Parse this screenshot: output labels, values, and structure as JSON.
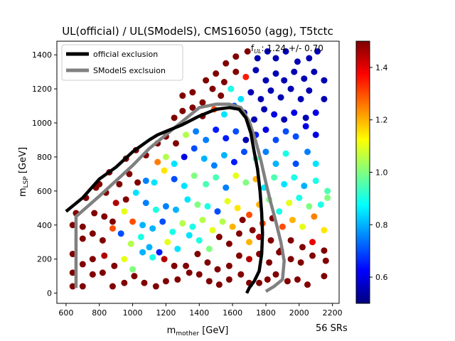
{
  "chart_data": {
    "type": "scatter",
    "title": "UL(official) / UL(SModelS), CMS16050 (agg), T5tctc",
    "xlabel": "m",
    "xlabel_sub": "mother",
    "xlabel_unit": " [GeV]",
    "ylabel": "m",
    "ylabel_sub": "LSP",
    "ylabel_unit": " [GeV]",
    "xlim": [
      545,
      2240
    ],
    "ylim": [
      -60,
      1480
    ],
    "xticks": [
      600,
      800,
      1000,
      1200,
      1400,
      1600,
      1800,
      2000,
      2200
    ],
    "yticks": [
      0,
      200,
      400,
      600,
      800,
      1000,
      1200,
      1400
    ],
    "annotation_f": "f",
    "annotation_sub": "UL",
    "annotation_value": ": 1.24 +/- 0.70",
    "footer": "56 SRs",
    "colorbar": {
      "min": 0.5,
      "max": 1.5,
      "ticks": [
        "0.6",
        "0.8",
        "1.0",
        "1.2",
        "1.4"
      ],
      "tick_values": [
        0.6,
        0.8,
        1.0,
        1.2,
        1.4
      ],
      "colormap": "jet"
    },
    "legend": {
      "placement": "top-left",
      "items": [
        {
          "label": "official exclusion",
          "color": "#000000"
        },
        {
          "label": "SModelS exclsuion",
          "color": "#808080"
        }
      ]
    },
    "official_exclusion": [
      [
        600,
        480
      ],
      [
        700,
        560
      ],
      [
        800,
        670
      ],
      [
        900,
        740
      ],
      [
        1000,
        830
      ],
      [
        1100,
        900
      ],
      [
        1150,
        930
      ],
      [
        1200,
        950
      ],
      [
        1300,
        990
      ],
      [
        1400,
        1040
      ],
      [
        1500,
        1080
      ],
      [
        1580,
        1090
      ],
      [
        1640,
        1080
      ],
      [
        1680,
        1030
      ],
      [
        1710,
        940
      ],
      [
        1730,
        830
      ],
      [
        1750,
        730
      ],
      [
        1765,
        600
      ],
      [
        1775,
        470
      ],
      [
        1780,
        350
      ],
      [
        1775,
        230
      ],
      [
        1760,
        130
      ],
      [
        1730,
        70
      ],
      [
        1700,
        30
      ],
      [
        1685,
        0
      ]
    ],
    "smodels_exclusion": [
      [
        660,
        30
      ],
      [
        660,
        450
      ],
      [
        800,
        570
      ],
      [
        900,
        660
      ],
      [
        1000,
        750
      ],
      [
        1100,
        850
      ],
      [
        1200,
        930
      ],
      [
        1300,
        1010
      ],
      [
        1400,
        1090
      ],
      [
        1500,
        1110
      ],
      [
        1580,
        1110
      ],
      [
        1650,
        1090
      ],
      [
        1700,
        1010
      ],
      [
        1740,
        890
      ],
      [
        1770,
        780
      ],
      [
        1800,
        650
      ],
      [
        1830,
        530
      ],
      [
        1860,
        420
      ],
      [
        1890,
        300
      ],
      [
        1910,
        190
      ],
      [
        1900,
        80
      ],
      [
        1850,
        40
      ],
      [
        1800,
        10
      ]
    ],
    "points": [
      [
        640,
        40,
        1.5
      ],
      [
        700,
        40,
        1.5
      ],
      [
        760,
        110,
        1.5
      ],
      [
        820,
        120,
        1.5
      ],
      [
        880,
        40,
        1.5
      ],
      [
        950,
        60,
        1.5
      ],
      [
        1010,
        100,
        1.5
      ],
      [
        1070,
        60,
        1.5
      ],
      [
        1140,
        40,
        1.5
      ],
      [
        1200,
        70,
        1.5
      ],
      [
        1270,
        80,
        1.5
      ],
      [
        1340,
        120,
        1.5
      ],
      [
        1400,
        110,
        1.5
      ],
      [
        1460,
        70,
        1.5
      ],
      [
        1520,
        50,
        1.5
      ],
      [
        1580,
        80,
        1.5
      ],
      [
        1650,
        110,
        1.5
      ],
      [
        1700,
        60,
        1.5
      ],
      [
        1760,
        60,
        1.5
      ],
      [
        1810,
        80,
        1.5
      ],
      [
        1860,
        110,
        1.5
      ],
      [
        1930,
        70,
        1.5
      ],
      [
        1990,
        80,
        1.5
      ],
      [
        2050,
        50,
        1.5
      ],
      [
        2150,
        100,
        1.5
      ],
      [
        640,
        120,
        1.5
      ],
      [
        700,
        170,
        1.5
      ],
      [
        760,
        200,
        1.5
      ],
      [
        830,
        220,
        1.45
      ],
      [
        890,
        160,
        1.5
      ],
      [
        950,
        200,
        1.1
      ],
      [
        1000,
        140,
        1.0
      ],
      [
        1060,
        240,
        0.8
      ],
      [
        1120,
        210,
        0.9
      ],
      [
        1190,
        200,
        1.45
      ],
      [
        1250,
        160,
        1.5
      ],
      [
        1320,
        160,
        1.5
      ],
      [
        1390,
        230,
        1.5
      ],
      [
        1450,
        180,
        1.5
      ],
      [
        1510,
        140,
        1.5
      ],
      [
        1580,
        160,
        1.5
      ],
      [
        1640,
        220,
        1.5
      ],
      [
        1700,
        200,
        1.45
      ],
      [
        1760,
        230,
        1.5
      ],
      [
        1820,
        180,
        1.5
      ],
      [
        1880,
        240,
        1.5
      ],
      [
        1950,
        200,
        1.5
      ],
      [
        2010,
        180,
        1.5
      ],
      [
        2080,
        220,
        1.5
      ],
      [
        2160,
        190,
        1.5
      ],
      [
        640,
        230,
        1.5
      ],
      [
        700,
        320,
        1.5
      ],
      [
        760,
        350,
        1.5
      ],
      [
        820,
        310,
        1.5
      ],
      [
        880,
        380,
        1.3
      ],
      [
        930,
        350,
        0.7
      ],
      [
        990,
        290,
        1.05
      ],
      [
        1050,
        330,
        0.9
      ],
      [
        1100,
        270,
        0.8
      ],
      [
        1160,
        240,
        0.65
      ],
      [
        1210,
        300,
        1.1
      ],
      [
        1270,
        260,
        0.85
      ],
      [
        1340,
        340,
        0.85
      ],
      [
        1400,
        310,
        0.9
      ],
      [
        1460,
        260,
        1.0
      ],
      [
        1520,
        330,
        1.5
      ],
      [
        1580,
        290,
        1.5
      ],
      [
        1640,
        350,
        1.5
      ],
      [
        1700,
        300,
        1.2
      ],
      [
        1760,
        330,
        1.45
      ],
      [
        1830,
        310,
        1.5
      ],
      [
        1890,
        250,
        1.5
      ],
      [
        1950,
        310,
        1.5
      ],
      [
        2020,
        270,
        1.5
      ],
      [
        2080,
        300,
        1.4
      ],
      [
        2150,
        250,
        1.5
      ],
      [
        640,
        400,
        1.5
      ],
      [
        700,
        390,
        1.5
      ],
      [
        770,
        470,
        1.5
      ],
      [
        830,
        450,
        1.5
      ],
      [
        880,
        420,
        1.5
      ],
      [
        950,
        480,
        1.1
      ],
      [
        1000,
        420,
        1.3
      ],
      [
        1060,
        400,
        0.8
      ],
      [
        1120,
        380,
        0.8
      ],
      [
        1180,
        420,
        0.7
      ],
      [
        1240,
        360,
        0.9
      ],
      [
        1300,
        410,
        1.05
      ],
      [
        1360,
        390,
        0.9
      ],
      [
        1420,
        430,
        1.05
      ],
      [
        1480,
        370,
        1.1
      ],
      [
        1540,
        420,
        1.05
      ],
      [
        1600,
        390,
        1.2
      ],
      [
        1660,
        430,
        1.5
      ],
      [
        1720,
        370,
        1.5
      ],
      [
        1780,
        410,
        1.3
      ],
      [
        1840,
        440,
        1.5
      ],
      [
        1900,
        390,
        1.3
      ],
      [
        1960,
        430,
        1.2
      ],
      [
        2020,
        390,
        1.1
      ],
      [
        2090,
        450,
        1.25
      ],
      [
        2150,
        370,
        1.15
      ],
      [
        660,
        470,
        1.5
      ],
      [
        720,
        560,
        1.5
      ],
      [
        780,
        620,
        1.5
      ],
      [
        840,
        590,
        1.5
      ],
      [
        900,
        530,
        1.45
      ],
      [
        960,
        550,
        1.5
      ],
      [
        1020,
        590,
        0.85
      ],
      [
        1080,
        530,
        0.75
      ],
      [
        1140,
        490,
        0.9
      ],
      [
        1200,
        510,
        0.75
      ],
      [
        1260,
        490,
        0.8
      ],
      [
        1330,
        550,
        0.85
      ],
      [
        1390,
        520,
        1.0
      ],
      [
        1450,
        510,
        0.9
      ],
      [
        1510,
        480,
        0.7
      ],
      [
        1570,
        540,
        1.1
      ],
      [
        1630,
        500,
        1.15
      ],
      [
        1700,
        460,
        1.3
      ],
      [
        1760,
        520,
        1.2
      ],
      [
        1820,
        550,
        1.0
      ],
      [
        1880,
        480,
        0.9
      ],
      [
        1940,
        530,
        1.1
      ],
      [
        2000,
        560,
        0.9
      ],
      [
        2060,
        510,
        1.0
      ],
      [
        2130,
        520,
        0.9
      ],
      [
        2170,
        560,
        1.0
      ],
      [
        800,
        640,
        1.5
      ],
      [
        860,
        710,
        1.5
      ],
      [
        920,
        640,
        1.5
      ],
      [
        980,
        700,
        1.5
      ],
      [
        1030,
        650,
        1.5
      ],
      [
        1080,
        660,
        0.75
      ],
      [
        1130,
        650,
        0.85
      ],
      [
        1190,
        720,
        1.15
      ],
      [
        1250,
        670,
        0.7
      ],
      [
        1310,
        630,
        0.85
      ],
      [
        1370,
        690,
        1.0
      ],
      [
        1440,
        640,
        0.95
      ],
      [
        1500,
        680,
        0.95
      ],
      [
        1560,
        620,
        0.75
      ],
      [
        1620,
        690,
        1.1
      ],
      [
        1680,
        650,
        1.0
      ],
      [
        1740,
        670,
        1.2
      ],
      [
        1790,
        620,
        0.85
      ],
      [
        1850,
        680,
        0.95
      ],
      [
        1910,
        640,
        0.85
      ],
      [
        1970,
        680,
        0.9
      ],
      [
        2030,
        630,
        0.8
      ],
      [
        2100,
        660,
        0.9
      ],
      [
        2170,
        600,
        0.95
      ],
      [
        960,
        790,
        1.5
      ],
      [
        1020,
        840,
        1.5
      ],
      [
        1080,
        810,
        1.5
      ],
      [
        1150,
        770,
        1.25
      ],
      [
        1200,
        800,
        1.05
      ],
      [
        1250,
        760,
        0.85
      ],
      [
        1310,
        800,
        0.6
      ],
      [
        1370,
        850,
        0.7
      ],
      [
        1430,
        790,
        0.8
      ],
      [
        1490,
        750,
        0.75
      ],
      [
        1550,
        810,
        0.8
      ],
      [
        1610,
        770,
        0.65
      ],
      [
        1670,
        830,
        0.7
      ],
      [
        1740,
        790,
        0.95
      ],
      [
        1800,
        830,
        0.75
      ],
      [
        1860,
        760,
        0.8
      ],
      [
        1920,
        820,
        0.9
      ],
      [
        1980,
        760,
        0.7
      ],
      [
        2050,
        830,
        0.75
      ],
      [
        2100,
        760,
        0.85
      ],
      [
        1150,
        880,
        1.5
      ],
      [
        1200,
        920,
        1.5
      ],
      [
        1260,
        880,
        1.5
      ],
      [
        1320,
        930,
        1.05
      ],
      [
        1380,
        950,
        0.75
      ],
      [
        1440,
        900,
        0.75
      ],
      [
        1500,
        960,
        0.65
      ],
      [
        1560,
        910,
        0.65
      ],
      [
        1620,
        950,
        0.7
      ],
      [
        1680,
        900,
        0.55
      ],
      [
        1740,
        930,
        0.65
      ],
      [
        1800,
        960,
        0.6
      ],
      [
        1860,
        900,
        0.7
      ],
      [
        1920,
        950,
        0.7
      ],
      [
        1980,
        920,
        0.7
      ],
      [
        2040,
        980,
        0.6
      ],
      [
        2100,
        930,
        0.6
      ],
      [
        1250,
        1030,
        1.5
      ],
      [
        1300,
        1070,
        1.5
      ],
      [
        1360,
        1090,
        1.5
      ],
      [
        1420,
        1040,
        1.5
      ],
      [
        1490,
        1080,
        1.3
      ],
      [
        1550,
        1050,
        0.85
      ],
      [
        1610,
        1100,
        0.7
      ],
      [
        1670,
        1060,
        0.55
      ],
      [
        1730,
        1020,
        0.55
      ],
      [
        1790,
        1080,
        0.55
      ],
      [
        1850,
        1050,
        0.6
      ],
      [
        1910,
        1020,
        0.55
      ],
      [
        1970,
        1060,
        0.6
      ],
      [
        2040,
        1030,
        0.55
      ],
      [
        2100,
        1060,
        0.6
      ],
      [
        1300,
        1160,
        1.5
      ],
      [
        1360,
        1180,
        1.5
      ],
      [
        1420,
        1120,
        1.5
      ],
      [
        1480,
        1200,
        1.5
      ],
      [
        1530,
        1160,
        1.5
      ],
      [
        1590,
        1200,
        0.9
      ],
      [
        1650,
        1140,
        0.85
      ],
      [
        1710,
        1180,
        0.55
      ],
      [
        1770,
        1140,
        0.55
      ],
      [
        1830,
        1190,
        0.55
      ],
      [
        1890,
        1150,
        0.55
      ],
      [
        1950,
        1200,
        0.55
      ],
      [
        2010,
        1140,
        0.55
      ],
      [
        2060,
        1190,
        0.55
      ],
      [
        2150,
        1140,
        0.55
      ],
      [
        1440,
        1250,
        1.5
      ],
      [
        1500,
        1290,
        1.5
      ],
      [
        1550,
        1240,
        1.5
      ],
      [
        1620,
        1300,
        1.5
      ],
      [
        1680,
        1270,
        1.35
      ],
      [
        1740,
        1310,
        0.55
      ],
      [
        1800,
        1250,
        0.55
      ],
      [
        1860,
        1290,
        0.55
      ],
      [
        1910,
        1250,
        0.55
      ],
      [
        1970,
        1300,
        0.55
      ],
      [
        2030,
        1260,
        0.55
      ],
      [
        2090,
        1300,
        0.55
      ],
      [
        2150,
        1250,
        0.55
      ],
      [
        1560,
        1350,
        1.5
      ],
      [
        1620,
        1390,
        1.5
      ],
      [
        1690,
        1420,
        1.5
      ],
      [
        1750,
        1380,
        0.55
      ],
      [
        1810,
        1420,
        0.55
      ],
      [
        1860,
        1380,
        0.55
      ],
      [
        1920,
        1420,
        0.55
      ],
      [
        1990,
        1360,
        0.55
      ],
      [
        2060,
        1380,
        0.55
      ],
      [
        2110,
        1420,
        0.55
      ]
    ]
  }
}
